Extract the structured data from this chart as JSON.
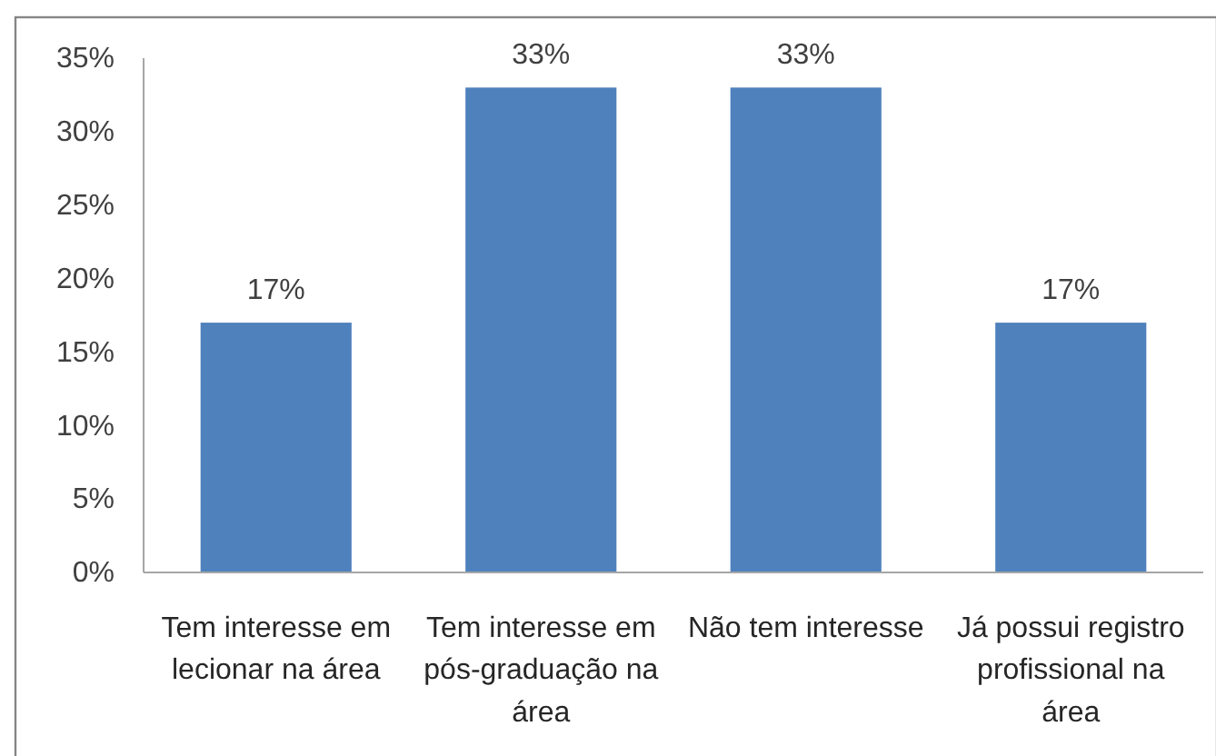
{
  "chart_data": {
    "type": "bar",
    "categories": [
      "Tem interesse em lecionar na área",
      "Tem interesse em pós-graduação na área",
      "Não tem interesse",
      "Já possui registro profissional na área"
    ],
    "values": [
      17,
      33,
      33,
      17
    ],
    "color": "#4f81bd",
    "value_labels": [
      "17%",
      "33%",
      "33%",
      "17%"
    ],
    "ylim": [
      0,
      35
    ],
    "yticks": [
      {
        "value": 0,
        "label": "0%"
      },
      {
        "value": 5,
        "label": "5%"
      },
      {
        "value": 10,
        "label": "10%"
      },
      {
        "value": 15,
        "label": "15%"
      },
      {
        "value": 20,
        "label": "20%"
      },
      {
        "value": 25,
        "label": "25%"
      },
      {
        "value": 30,
        "label": "30%"
      },
      {
        "value": 35,
        "label": "35%"
      }
    ]
  }
}
